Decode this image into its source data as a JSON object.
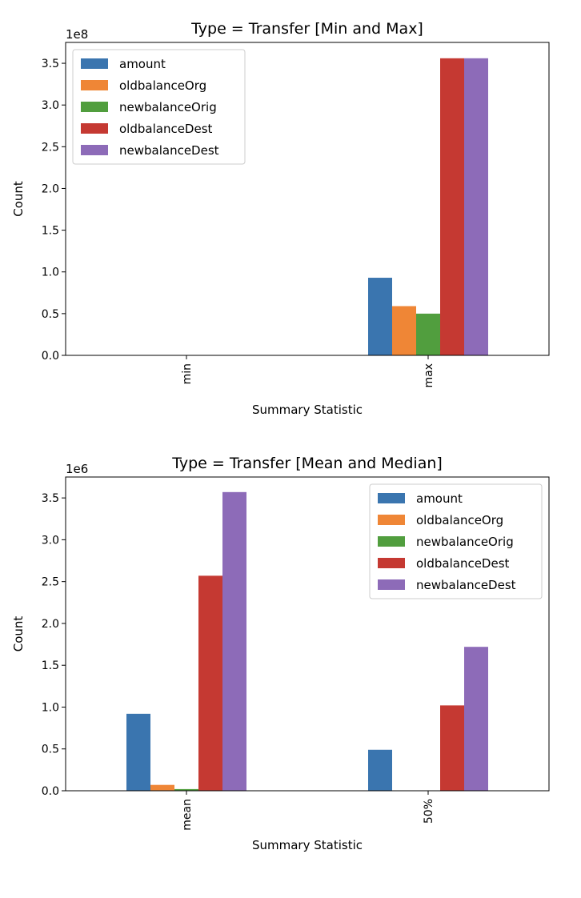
{
  "chart_data": [
    {
      "type": "bar",
      "title": "Type = Transfer [Min and Max]",
      "xlabel": "Summary Statistic",
      "ylabel": "Count",
      "offset_label": "1e8",
      "categories": [
        "min",
        "max"
      ],
      "ylim": [
        0,
        3.75
      ],
      "yticks": [
        "0.0",
        "0.5",
        "1.0",
        "1.5",
        "2.0",
        "2.5",
        "3.0",
        "3.5"
      ],
      "legend_position": "upper-left",
      "series": [
        {
          "name": "amount",
          "color": "#3a75af",
          "values": [
            0,
            0.93
          ]
        },
        {
          "name": "oldbalanceOrg",
          "color": "#ef8636",
          "values": [
            0,
            0.59
          ]
        },
        {
          "name": "newbalanceOrig",
          "color": "#519e3e",
          "values": [
            0,
            0.5
          ]
        },
        {
          "name": "oldbalanceDest",
          "color": "#c53932",
          "values": [
            0,
            3.56
          ]
        },
        {
          "name": "newbalanceDest",
          "color": "#8d6bb8",
          "values": [
            0,
            3.56
          ]
        }
      ]
    },
    {
      "type": "bar",
      "title": "Type = Transfer [Mean and Median]",
      "xlabel": "Summary Statistic",
      "ylabel": "Count",
      "offset_label": "1e6",
      "categories": [
        "mean",
        "50%"
      ],
      "ylim": [
        0,
        3.75
      ],
      "yticks": [
        "0.0",
        "0.5",
        "1.0",
        "1.5",
        "2.0",
        "2.5",
        "3.0",
        "3.5"
      ],
      "legend_position": "upper-right",
      "series": [
        {
          "name": "amount",
          "color": "#3a75af",
          "values": [
            0.92,
            0.49
          ]
        },
        {
          "name": "oldbalanceOrg",
          "color": "#ef8636",
          "values": [
            0.07,
            0
          ]
        },
        {
          "name": "newbalanceOrig",
          "color": "#519e3e",
          "values": [
            0.02,
            0
          ]
        },
        {
          "name": "oldbalanceDest",
          "color": "#c53932",
          "values": [
            2.57,
            1.02
          ]
        },
        {
          "name": "newbalanceDest",
          "color": "#8d6bb8",
          "values": [
            3.57,
            1.72
          ]
        }
      ]
    }
  ]
}
